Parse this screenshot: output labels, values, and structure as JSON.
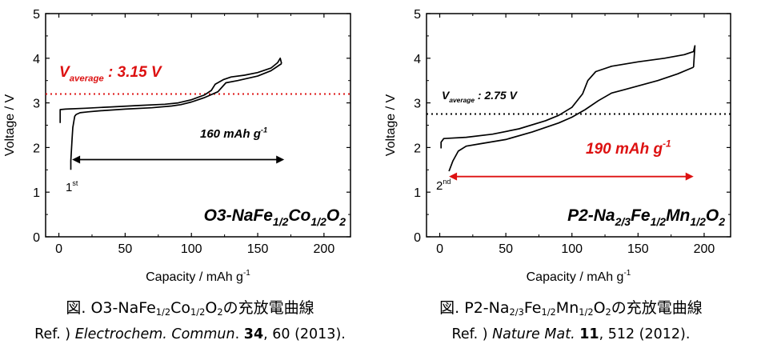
{
  "chart_data": [
    {
      "type": "line",
      "xlabel": "Capacity / mAh g",
      "xlabel_sup": "-1",
      "ylabel": "Voltage / V",
      "xlim": [
        -10,
        220
      ],
      "ylim": [
        0,
        5
      ],
      "xticks": [
        0,
        50,
        100,
        150,
        200
      ],
      "yticks": [
        0,
        1,
        2,
        3,
        4,
        5
      ],
      "series": [
        {
          "values_x": [
            9,
            9,
            10,
            10.5,
            11.5,
            12,
            13,
            16,
            22,
            30,
            50,
            70,
            85,
            92,
            100,
            110,
            120,
            126,
            135,
            150,
            160,
            164,
            168
          ],
          "values_y": [
            1.5,
            1.7,
            2.2,
            2.45,
            2.62,
            2.7,
            2.74,
            2.78,
            2.8,
            2.82,
            2.86,
            2.89,
            2.93,
            2.96,
            3.02,
            3.12,
            3.25,
            3.45,
            3.5,
            3.6,
            3.72,
            3.8,
            3.88
          ]
        },
        {
          "values_x": [
            168,
            167,
            165,
            160,
            150,
            140,
            130,
            124,
            118,
            115,
            110,
            100,
            90,
            80,
            60,
            40,
            20,
            5,
            1,
            1,
            1
          ],
          "values_y": [
            3.88,
            4.0,
            3.9,
            3.78,
            3.68,
            3.62,
            3.58,
            3.52,
            3.42,
            3.28,
            3.18,
            3.07,
            3.0,
            2.97,
            2.94,
            2.91,
            2.88,
            2.86,
            2.85,
            2.72,
            2.55
          ]
        }
      ],
      "reference_line": {
        "y": 3.2,
        "color": "#dd1111"
      },
      "annotations": {
        "vavg_prefix": "V",
        "vavg_sub": "average",
        "vavg_value": " : 3.15 V",
        "capacity": "160 mAh g",
        "capacity_sup": "-1",
        "cycle": "1",
        "cycle_sup": "st",
        "formula": [
          {
            "t": "O3-NaFe",
            "s": false
          },
          {
            "t": "1/2",
            "s": true
          },
          {
            "t": "Co",
            "s": false
          },
          {
            "t": "1/2",
            "s": true
          },
          {
            "t": "O",
            "s": false
          },
          {
            "t": "2",
            "s": true
          }
        ]
      },
      "arrow": {
        "x1": 10,
        "x2": 170,
        "y": 1.73,
        "color": "#000000"
      }
    },
    {
      "type": "line",
      "xlabel": "Capacity / mAh g",
      "xlabel_sup": "-1",
      "ylabel": "Voltage / V",
      "xlim": [
        -10,
        220
      ],
      "ylim": [
        0,
        5
      ],
      "xticks": [
        0,
        50,
        100,
        150,
        200
      ],
      "yticks": [
        0,
        1,
        2,
        3,
        4,
        5
      ],
      "series": [
        {
          "values_x": [
            7,
            10,
            14,
            20,
            30,
            50,
            70,
            90,
            100,
            110,
            120,
            130,
            140,
            150,
            165,
            180,
            192
          ],
          "values_y": [
            1.47,
            1.7,
            1.92,
            2.03,
            2.08,
            2.18,
            2.35,
            2.55,
            2.68,
            2.85,
            3.05,
            3.22,
            3.3,
            3.38,
            3.5,
            3.65,
            3.8
          ]
        },
        {
          "values_x": [
            192,
            193,
            192,
            185,
            170,
            150,
            130,
            118,
            112,
            108,
            100,
            90,
            80,
            60,
            40,
            20,
            3,
            1,
            1
          ],
          "values_y": [
            3.8,
            4.28,
            4.15,
            4.08,
            4.0,
            3.92,
            3.82,
            3.7,
            3.5,
            3.2,
            2.9,
            2.72,
            2.6,
            2.42,
            2.3,
            2.23,
            2.2,
            2.12,
            1.98
          ]
        }
      ],
      "reference_line": {
        "y": 2.75,
        "color": "#000000"
      },
      "annotations": {
        "vavg_prefix": "V",
        "vavg_sub": "average",
        "vavg_value": " : 2.75 V",
        "capacity": "190 mAh g",
        "capacity_sup": "-1",
        "cycle": "2",
        "cycle_sup": "nd",
        "formula": [
          {
            "t": "P2-Na",
            "s": false
          },
          {
            "t": "2/3",
            "s": true
          },
          {
            "t": "Fe",
            "s": false
          },
          {
            "t": "1/2",
            "s": true
          },
          {
            "t": "Mn",
            "s": false
          },
          {
            "t": "1/2",
            "s": true
          },
          {
            "t": "O",
            "s": false
          },
          {
            "t": "2",
            "s": true
          }
        ]
      },
      "arrow": {
        "x1": 7,
        "x2": 192,
        "y": 1.35,
        "color": "#dd1111"
      }
    }
  ],
  "captions": [
    {
      "prefix": "図. O3-NaFe",
      "parts": [
        {
          "t": "1/2",
          "s": true
        },
        {
          "t": "Co",
          "s": false
        },
        {
          "t": "1/2",
          "s": true
        },
        {
          "t": "O",
          "s": false
        },
        {
          "t": "2",
          "s": true
        },
        {
          "t": "の充放電曲線",
          "s": false
        }
      ],
      "ref_prefix": "Ref. ) ",
      "ref_journal": "Electrochem. Commun",
      "ref_dot": ". ",
      "ref_volume": "34",
      "ref_rest": ", 60 (2013)."
    },
    {
      "prefix": "図. P2-Na",
      "parts": [
        {
          "t": "2/3",
          "s": true
        },
        {
          "t": "Fe",
          "s": false
        },
        {
          "t": "1/2",
          "s": true
        },
        {
          "t": "Mn",
          "s": false
        },
        {
          "t": "1/2",
          "s": true
        },
        {
          "t": "O",
          "s": false
        },
        {
          "t": "2",
          "s": true
        },
        {
          "t": "の充放電曲線",
          "s": false
        }
      ],
      "ref_prefix": "Ref. ) ",
      "ref_journal": "Nature Mat.",
      "ref_dot": " ",
      "ref_volume": "11",
      "ref_rest": ", 512 (2012)."
    }
  ]
}
